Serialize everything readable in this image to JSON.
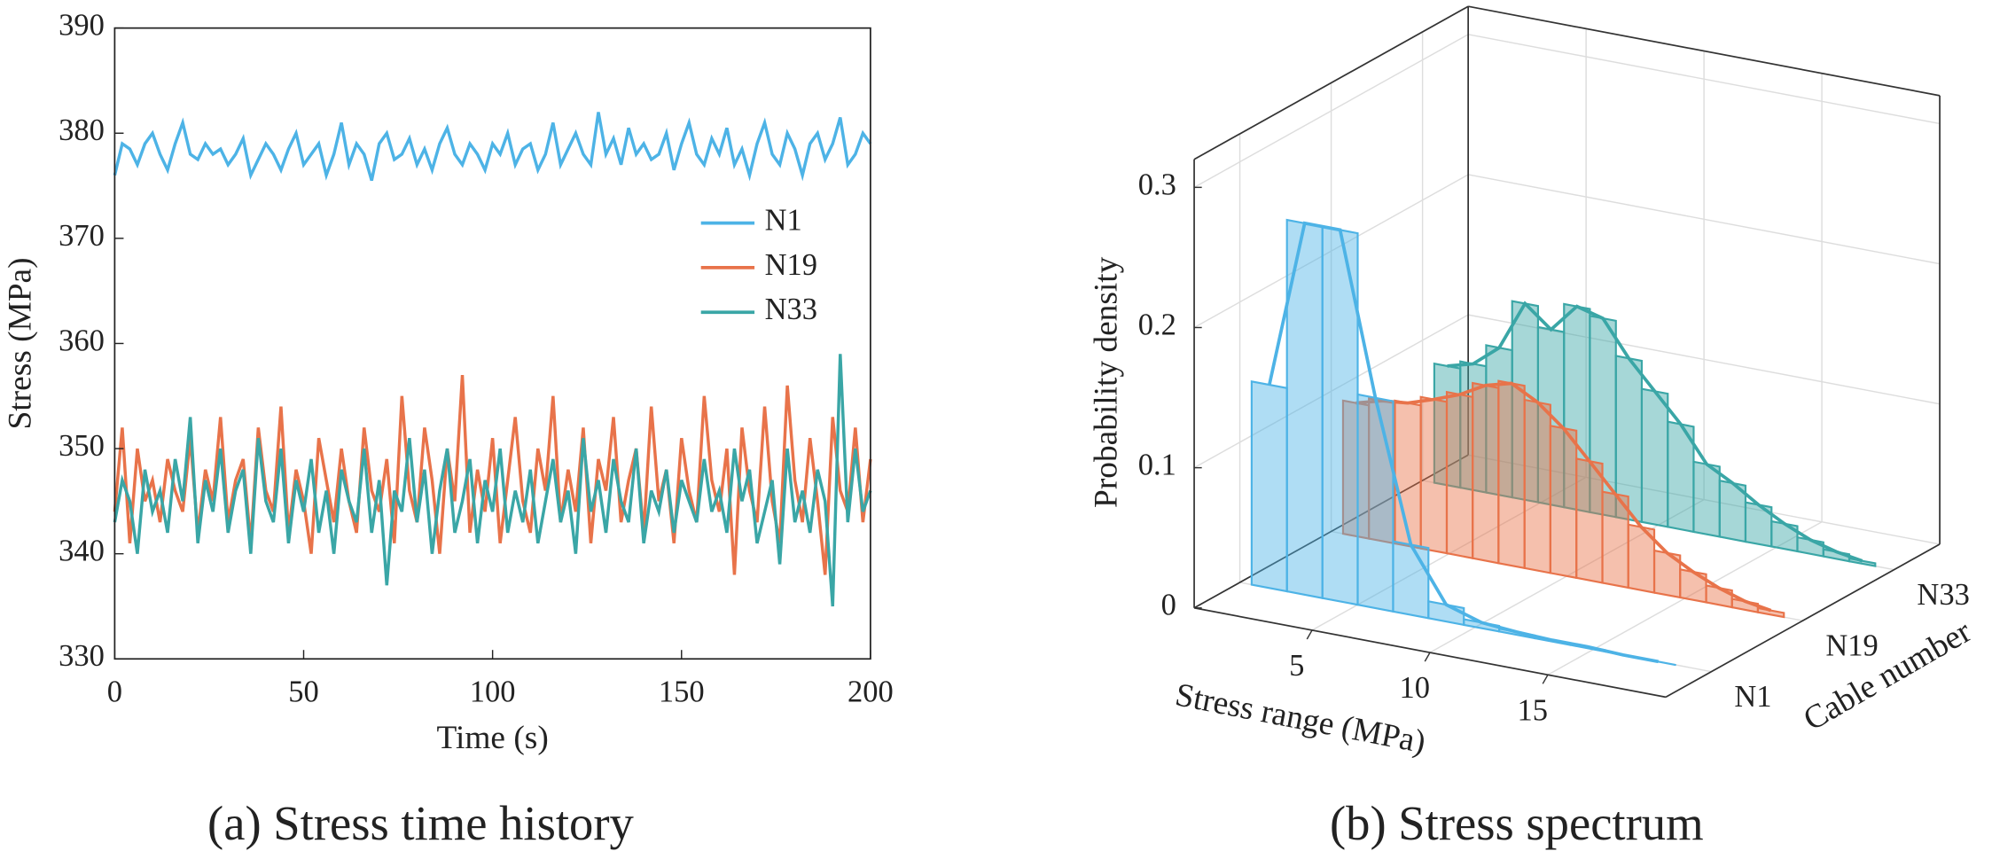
{
  "chart_data": [
    {
      "type": "line",
      "caption": "(a) Stress time history",
      "xlabel": "Time (s)",
      "ylabel": "Stress (MPa)",
      "xlim": [
        0,
        200
      ],
      "xticks": [
        0,
        50,
        100,
        150,
        200
      ],
      "ylim": [
        330,
        390
      ],
      "yticks": [
        330,
        340,
        350,
        360,
        370,
        380,
        390
      ],
      "legend": "right",
      "x": [
        0,
        2,
        4,
        6,
        8,
        10,
        12,
        14,
        16,
        18,
        20,
        22,
        24,
        26,
        28,
        30,
        32,
        34,
        36,
        38,
        40,
        42,
        44,
        46,
        48,
        50,
        52,
        54,
        56,
        58,
        60,
        62,
        64,
        66,
        68,
        70,
        72,
        74,
        76,
        78,
        80,
        82,
        84,
        86,
        88,
        90,
        92,
        94,
        96,
        98,
        100,
        102,
        104,
        106,
        108,
        110,
        112,
        114,
        116,
        118,
        120,
        122,
        124,
        126,
        128,
        130,
        132,
        134,
        136,
        138,
        140,
        142,
        144,
        146,
        148,
        150,
        152,
        154,
        156,
        158,
        160,
        162,
        164,
        166,
        168,
        170,
        172,
        174,
        176,
        178,
        180,
        182,
        184,
        186,
        188,
        190,
        192,
        194,
        196,
        198,
        200
      ],
      "series": [
        {
          "name": "N1",
          "color": "#4db3e6",
          "values": [
            376,
            379,
            378.5,
            377,
            379,
            380,
            378,
            376.5,
            379,
            381,
            378,
            377.5,
            379,
            378,
            378.5,
            377,
            378,
            379.5,
            376,
            377.5,
            379,
            378,
            376.5,
            378.5,
            380,
            377,
            378,
            379,
            376,
            378,
            381,
            377,
            379,
            378,
            375.5,
            379,
            380,
            377.5,
            378,
            379.5,
            377,
            378.5,
            376.5,
            379,
            380.5,
            378,
            377,
            379,
            378,
            376.5,
            379,
            378,
            380,
            377,
            378.5,
            379,
            376.5,
            378,
            381,
            377,
            378.5,
            380,
            378,
            377,
            382,
            378,
            379.5,
            377,
            380.5,
            378,
            379,
            377.5,
            378,
            380,
            376.5,
            379,
            381,
            378,
            377,
            379.5,
            378,
            380.5,
            377,
            378.5,
            376,
            379,
            381,
            378,
            377,
            380,
            378.5,
            376,
            379,
            380,
            377.5,
            379,
            381.5,
            377,
            378,
            380,
            379
          ]
        },
        {
          "name": "N19",
          "color": "#e8734a",
          "values": [
            344,
            352,
            341,
            350,
            345,
            347,
            343,
            349,
            346,
            344,
            351,
            342,
            348,
            345,
            353,
            343,
            347,
            349,
            341,
            352,
            346,
            344,
            354,
            342,
            348,
            345,
            340,
            351,
            347,
            343,
            350,
            345,
            342,
            352,
            346,
            344,
            349,
            341,
            355,
            346,
            343,
            352,
            347,
            340,
            350,
            345,
            357,
            342,
            348,
            344,
            351,
            341,
            347,
            353,
            345,
            342,
            350,
            346,
            355,
            343,
            348,
            344,
            352,
            341,
            349,
            346,
            353,
            343,
            347,
            350,
            342,
            354,
            345,
            348,
            341,
            351,
            346,
            343,
            355,
            347,
            344,
            350,
            338,
            352,
            346,
            343,
            354,
            345,
            341,
            356,
            347,
            343,
            351,
            345,
            338,
            353,
            346,
            344,
            352,
            343,
            349
          ]
        },
        {
          "name": "N33",
          "color": "#3aa6a6",
          "values": [
            343,
            347,
            345,
            340,
            348,
            344,
            346,
            342,
            349,
            345,
            353,
            341,
            347,
            344,
            350,
            342,
            346,
            348,
            340,
            351,
            345,
            343,
            350,
            341,
            347,
            344,
            349,
            342,
            346,
            340,
            348,
            345,
            343,
            350,
            342,
            347,
            337,
            346,
            344,
            351,
            343,
            348,
            340,
            346,
            350,
            342,
            345,
            349,
            341,
            347,
            344,
            350,
            342,
            346,
            343,
            348,
            341,
            345,
            349,
            343,
            346,
            340,
            351,
            344,
            347,
            342,
            349,
            345,
            343,
            350,
            341,
            346,
            344,
            348,
            342,
            347,
            345,
            343,
            349,
            344,
            346,
            342,
            350,
            345,
            348,
            341,
            344,
            347,
            339,
            350,
            343,
            346,
            342,
            348,
            345,
            335,
            359,
            343,
            350,
            344,
            346
          ]
        }
      ]
    },
    {
      "type": "histogram3d",
      "caption": "(b) Stress spectrum",
      "xlabel": "Stress range (MPa)",
      "ylabel": "Cable number",
      "zlabel": "Probability density",
      "xlim": [
        0,
        20
      ],
      "xticks": [
        5,
        10,
        15
      ],
      "zlim": [
        0,
        0.32
      ],
      "zticks": [
        0,
        0.1,
        0.2,
        0.3
      ],
      "categories": [
        "N1",
        "N19",
        "N33"
      ],
      "grid": true,
      "series": [
        {
          "name": "N1",
          "color": "#4db3e6",
          "bins": [
            0.5,
            2,
            3.5,
            5,
            6.5,
            8,
            9.5,
            11,
            12.5,
            14,
            15.5,
            17,
            18.5
          ],
          "values": [
            0.145,
            0.265,
            0.265,
            0.15,
            0.05,
            0.012,
            0.004,
            0.002,
            0.001,
            0.001,
            0,
            0
          ]
        },
        {
          "name": "N19",
          "color": "#e8734a",
          "bins": [
            0.5,
            1.6,
            2.7,
            3.8,
            4.9,
            6,
            7.1,
            8.2,
            9.3,
            10.4,
            11.5,
            12.6,
            13.7,
            14.8,
            15.9,
            17,
            18.1,
            19.2
          ],
          "values": [
            0.095,
            0.1,
            0.102,
            0.108,
            0.115,
            0.125,
            0.13,
            0.12,
            0.105,
            0.085,
            0.065,
            0.045,
            0.03,
            0.02,
            0.012,
            0.006,
            0.003
          ]
        },
        {
          "name": "N33",
          "color": "#3aa6a6",
          "bins": [
            0.5,
            1.6,
            2.7,
            3.8,
            4.9,
            6,
            7.1,
            8.2,
            9.3,
            10.4,
            11.5,
            12.6,
            13.7,
            14.8,
            15.9,
            17,
            18.1,
            19.2
          ],
          "values": [
            0.085,
            0.09,
            0.105,
            0.14,
            0.125,
            0.145,
            0.14,
            0.115,
            0.095,
            0.075,
            0.05,
            0.04,
            0.028,
            0.018,
            0.01,
            0.005,
            0.002
          ]
        }
      ]
    }
  ]
}
